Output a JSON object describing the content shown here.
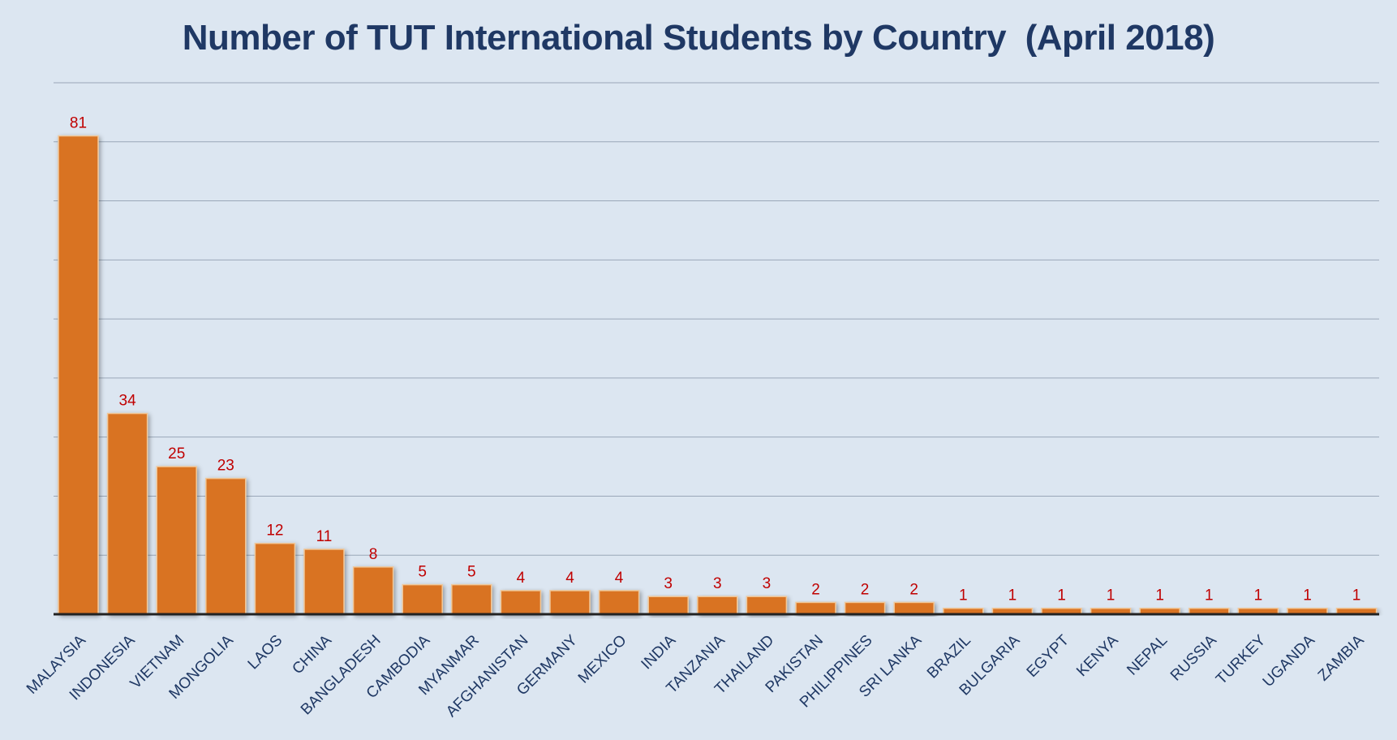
{
  "chart_data": {
    "type": "bar",
    "title": "Number of TUT International Students by Country  (April 2018)",
    "xlabel": "",
    "ylabel": "",
    "ylim": [
      0,
      90
    ],
    "grid": true,
    "legend": "none",
    "colors": {
      "bar": "#d97320",
      "data_label": "#c00000",
      "tick_label": "#1f3864",
      "background": "#dce6f1"
    },
    "categories": [
      "MALAYSIA",
      "INDONESIA",
      "VIETNAM",
      "MONGOLIA",
      "LAOS",
      "CHINA",
      "BANGLADESH",
      "CAMBODIA",
      "MYANMAR",
      "AFGHANISTAN",
      "GERMANY",
      "MEXICO",
      "INDIA",
      "TANZANIA",
      "THAILAND",
      "PAKISTAN",
      "PHILIPPINES",
      "SRI LANKA",
      "BRAZIL",
      "BULGARIA",
      "EGYPT",
      "KENYA",
      "NEPAL",
      "RUSSIA",
      "TURKEY",
      "UGANDA",
      "ZAMBIA"
    ],
    "values": [
      81,
      34,
      25,
      23,
      12,
      11,
      8,
      5,
      5,
      4,
      4,
      4,
      3,
      3,
      3,
      2,
      2,
      2,
      1,
      1,
      1,
      1,
      1,
      1,
      1,
      1,
      1
    ]
  }
}
